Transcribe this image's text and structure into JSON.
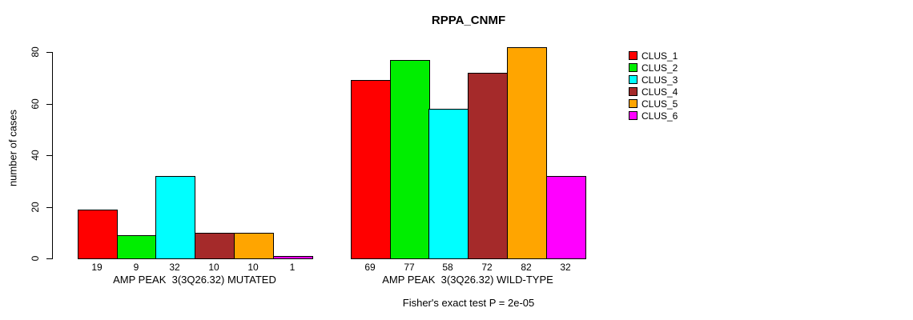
{
  "chart_data": {
    "type": "bar",
    "title": "RPPA_CNMF",
    "ylabel": "number of cases",
    "annotation": "Fisher's exact test P = 2e-05",
    "ylim": [
      0,
      80
    ],
    "yticks": [
      0,
      20,
      40,
      60,
      80
    ],
    "grid": false,
    "legend_position": "right",
    "clusters": [
      {
        "name": "CLUS_1",
        "color": "#FF0000"
      },
      {
        "name": "CLUS_2",
        "color": "#00EE00"
      },
      {
        "name": "CLUS_3",
        "color": "#00FFFF"
      },
      {
        "name": "CLUS_4",
        "color": "#A52A2A"
      },
      {
        "name": "CLUS_5",
        "color": "#FFA500"
      },
      {
        "name": "CLUS_6",
        "color": "#FF00FF"
      }
    ],
    "groups": [
      {
        "label": "AMP PEAK  3(3Q26.32) MUTATED",
        "values": [
          19,
          9,
          32,
          10,
          10,
          1
        ]
      },
      {
        "label": "AMP PEAK  3(3Q26.32) WILD-TYPE",
        "values": [
          69,
          77,
          58,
          72,
          82,
          32
        ]
      }
    ],
    "show_value_labels": true
  }
}
